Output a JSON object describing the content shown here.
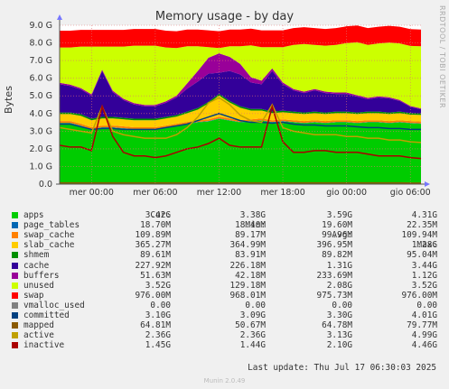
{
  "title": "Memory usage - by day",
  "side_text": "RRDTOOL / TOBI OETIKER",
  "legend_headers": {
    "cur": "Cur:",
    "min": "Min:",
    "avg": "Avg:",
    "max": "Max:"
  },
  "legend": [
    {
      "name": "apps",
      "color": "#00cc00",
      "cur": "3.42G",
      "min": "3.38G",
      "avg": "3.59G",
      "max": "4.31G"
    },
    {
      "name": "page_tables",
      "color": "#0066b3",
      "cur": "18.70M",
      "min": "18.40M",
      "avg": "19.60M",
      "max": "22.35M"
    },
    {
      "name": "swap_cache",
      "color": "#ff8000",
      "cur": "109.89M",
      "min": "89.17M",
      "avg": "99.96M",
      "max": "109.94M"
    },
    {
      "name": "slab_cache",
      "color": "#ffcc00",
      "cur": "365.27M",
      "min": "364.99M",
      "avg": "396.95M",
      "max": "1.28G"
    },
    {
      "name": "shmem",
      "color": "#008f00",
      "cur": "89.61M",
      "min": "83.91M",
      "avg": "89.82M",
      "max": "95.04M"
    },
    {
      "name": "cache",
      "color": "#330099",
      "cur": "227.92M",
      "min": "226.18M",
      "avg": "1.31G",
      "max": "3.44G"
    },
    {
      "name": "buffers",
      "color": "#990099",
      "cur": "51.63M",
      "min": "42.18M",
      "avg": "233.69M",
      "max": "1.12G"
    },
    {
      "name": "unused",
      "color": "#ccff00",
      "cur": "3.52G",
      "min": "129.18M",
      "avg": "2.08G",
      "max": "3.52G"
    },
    {
      "name": "swap",
      "color": "#ff0000",
      "cur": "976.00M",
      "min": "968.01M",
      "avg": "975.73M",
      "max": "976.00M"
    },
    {
      "name": "vmalloc_used",
      "color": "#808080",
      "cur": "0.00",
      "min": "0.00",
      "avg": "0.00",
      "max": "0.00"
    },
    {
      "name": "committed",
      "color": "#004080",
      "cur": "3.10G",
      "min": "3.09G",
      "avg": "3.30G",
      "max": "4.01G"
    },
    {
      "name": "mapped",
      "color": "#8a5a00",
      "cur": "64.81M",
      "min": "50.67M",
      "avg": "64.78M",
      "max": "79.77M"
    },
    {
      "name": "active",
      "color": "#c0a000",
      "cur": "2.36G",
      "min": "2.36G",
      "avg": "3.13G",
      "max": "4.99G"
    },
    {
      "name": "inactive",
      "color": "#aa0000",
      "cur": "1.45G",
      "min": "1.44G",
      "avg": "2.10G",
      "max": "4.46G"
    }
  ],
  "last_update": "Last update: Thu Jul 17 06:30:03 2025",
  "footer": "Munin 2.0.49",
  "chart_data": {
    "type": "area",
    "title": "Memory usage - by day",
    "ylabel": "Bytes",
    "ylim": [
      0,
      9
    ],
    "y_unit": "G",
    "yticks": [
      "0.0",
      "1.0 G",
      "2.0 G",
      "3.0 G",
      "4.0 G",
      "5.0 G",
      "6.0 G",
      "7.0 G",
      "8.0 G",
      "9.0 G"
    ],
    "xticks": [
      "mer 00:00",
      "mer 06:00",
      "mer 12:00",
      "mer 18:00",
      "gio 00:00",
      "gio 06:00"
    ],
    "x_hours": [
      -3,
      -2,
      -1,
      0,
      1,
      2,
      3,
      4,
      5,
      6,
      7,
      8,
      9,
      10,
      11,
      12,
      13,
      14,
      15,
      16,
      17,
      18,
      19,
      20,
      21,
      22,
      23,
      24,
      25,
      26,
      27,
      28,
      29,
      30,
      31
    ],
    "series": [
      {
        "name": "apps",
        "values": [
          3.45,
          3.45,
          3.3,
          3.1,
          3.2,
          3.2,
          3.15,
          3.1,
          3.1,
          3.1,
          3.2,
          3.3,
          3.4,
          3.5,
          3.55,
          3.7,
          3.6,
          3.5,
          3.55,
          3.6,
          3.5,
          3.55,
          3.5,
          3.45,
          3.5,
          3.45,
          3.5,
          3.5,
          3.45,
          3.5,
          3.5,
          3.45,
          3.5,
          3.45,
          3.42
        ]
      },
      {
        "name": "page_tables",
        "values": [
          0.02,
          0.02,
          0.02,
          0.02,
          0.02,
          0.02,
          0.02,
          0.02,
          0.02,
          0.02,
          0.02,
          0.02,
          0.02,
          0.02,
          0.02,
          0.02,
          0.02,
          0.02,
          0.02,
          0.02,
          0.02,
          0.02,
          0.02,
          0.02,
          0.02,
          0.02,
          0.02,
          0.02,
          0.02,
          0.02,
          0.02,
          0.02,
          0.02,
          0.02,
          0.02
        ]
      },
      {
        "name": "swap_cache",
        "values": [
          0.1,
          0.1,
          0.1,
          0.1,
          0.1,
          0.1,
          0.1,
          0.1,
          0.1,
          0.1,
          0.1,
          0.1,
          0.1,
          0.1,
          0.1,
          0.1,
          0.1,
          0.1,
          0.1,
          0.1,
          0.1,
          0.1,
          0.1,
          0.1,
          0.1,
          0.1,
          0.1,
          0.1,
          0.1,
          0.1,
          0.1,
          0.1,
          0.1,
          0.1,
          0.11
        ]
      },
      {
        "name": "slab_cache",
        "values": [
          0.4,
          0.4,
          0.45,
          0.4,
          0.4,
          0.4,
          0.4,
          0.4,
          0.4,
          0.4,
          0.4,
          0.4,
          0.5,
          0.6,
          0.9,
          1.2,
          0.9,
          0.7,
          0.5,
          0.45,
          0.4,
          0.4,
          0.4,
          0.4,
          0.4,
          0.4,
          0.4,
          0.4,
          0.4,
          0.4,
          0.4,
          0.4,
          0.4,
          0.37,
          0.37
        ]
      },
      {
        "name": "shmem",
        "values": [
          0.09,
          0.09,
          0.09,
          0.09,
          0.09,
          0.09,
          0.09,
          0.09,
          0.09,
          0.09,
          0.09,
          0.09,
          0.09,
          0.09,
          0.09,
          0.09,
          0.09,
          0.09,
          0.09,
          0.09,
          0.09,
          0.09,
          0.09,
          0.09,
          0.09,
          0.09,
          0.09,
          0.09,
          0.09,
          0.09,
          0.09,
          0.09,
          0.09,
          0.09,
          0.09
        ]
      },
      {
        "name": "cache",
        "values": [
          1.6,
          1.5,
          1.4,
          1.3,
          2.6,
          1.4,
          1.0,
          0.8,
          0.7,
          0.7,
          0.8,
          1.0,
          1.3,
          1.5,
          1.6,
          1.2,
          1.7,
          1.8,
          1.5,
          1.4,
          2.3,
          1.5,
          1.2,
          1.1,
          1.2,
          1.1,
          1.0,
          1.0,
          0.9,
          0.7,
          0.8,
          0.8,
          0.6,
          0.35,
          0.23
        ]
      },
      {
        "name": "buffers",
        "values": [
          0.08,
          0.08,
          0.08,
          0.08,
          0.08,
          0.08,
          0.08,
          0.08,
          0.08,
          0.08,
          0.08,
          0.1,
          0.3,
          0.6,
          0.9,
          1.1,
          0.8,
          0.6,
          0.3,
          0.2,
          0.15,
          0.1,
          0.08,
          0.08,
          0.08,
          0.08,
          0.08,
          0.08,
          0.08,
          0.08,
          0.06,
          0.06,
          0.06,
          0.05,
          0.05
        ]
      },
      {
        "name": "unused",
        "values": [
          2.0,
          2.1,
          2.35,
          2.7,
          1.3,
          2.5,
          2.95,
          3.25,
          3.35,
          3.35,
          3.05,
          2.7,
          2.1,
          1.4,
          0.6,
          0.3,
          0.6,
          1.0,
          1.8,
          1.9,
          1.2,
          2.0,
          2.5,
          2.7,
          2.5,
          2.6,
          2.7,
          2.8,
          3.0,
          3.0,
          3.0,
          3.1,
          3.2,
          3.4,
          3.52
        ]
      },
      {
        "name": "swap",
        "values": [
          0.95,
          0.95,
          0.95,
          0.95,
          0.95,
          0.95,
          0.95,
          0.95,
          0.95,
          0.95,
          0.95,
          0.95,
          0.95,
          0.95,
          0.95,
          0.95,
          0.95,
          0.95,
          0.95,
          0.95,
          0.95,
          0.95,
          0.95,
          0.95,
          0.95,
          0.95,
          0.95,
          0.95,
          0.95,
          0.95,
          0.95,
          0.95,
          0.95,
          0.95,
          0.95
        ]
      },
      {
        "name": "committed",
        "values": [
          3.4,
          3.4,
          3.25,
          3.1,
          3.15,
          3.15,
          3.1,
          3.1,
          3.1,
          3.1,
          3.2,
          3.3,
          3.4,
          3.6,
          3.8,
          4.0,
          3.8,
          3.6,
          3.5,
          3.5,
          3.45,
          3.5,
          3.4,
          3.35,
          3.35,
          3.3,
          3.3,
          3.3,
          3.25,
          3.2,
          3.2,
          3.15,
          3.15,
          3.1,
          3.1
        ]
      },
      {
        "name": "mapped",
        "values": [
          0.07,
          0.07,
          0.07,
          0.07,
          0.07,
          0.07,
          0.07,
          0.07,
          0.07,
          0.07,
          0.07,
          0.07,
          0.07,
          0.07,
          0.07,
          0.07,
          0.07,
          0.07,
          0.07,
          0.07,
          0.07,
          0.07,
          0.07,
          0.07,
          0.07,
          0.07,
          0.07,
          0.07,
          0.07,
          0.07,
          0.07,
          0.07,
          0.07,
          0.06,
          0.06
        ]
      },
      {
        "name": "active",
        "values": [
          3.2,
          3.1,
          3.0,
          2.9,
          4.4,
          3.0,
          2.8,
          2.7,
          2.6,
          2.6,
          2.6,
          2.8,
          3.2,
          3.8,
          4.6,
          4.9,
          4.5,
          3.9,
          3.6,
          3.5,
          4.5,
          3.2,
          3.0,
          2.9,
          2.8,
          2.8,
          2.8,
          2.7,
          2.7,
          2.6,
          2.6,
          2.5,
          2.5,
          2.4,
          2.36
        ]
      },
      {
        "name": "inactive",
        "values": [
          2.2,
          2.1,
          2.1,
          1.9,
          4.4,
          2.7,
          1.8,
          1.6,
          1.6,
          1.5,
          1.6,
          1.8,
          2.0,
          2.1,
          2.3,
          2.6,
          2.2,
          2.1,
          2.1,
          2.1,
          4.4,
          2.4,
          1.8,
          1.8,
          1.9,
          1.9,
          1.8,
          1.8,
          1.8,
          1.7,
          1.6,
          1.6,
          1.6,
          1.5,
          1.45
        ]
      }
    ]
  }
}
